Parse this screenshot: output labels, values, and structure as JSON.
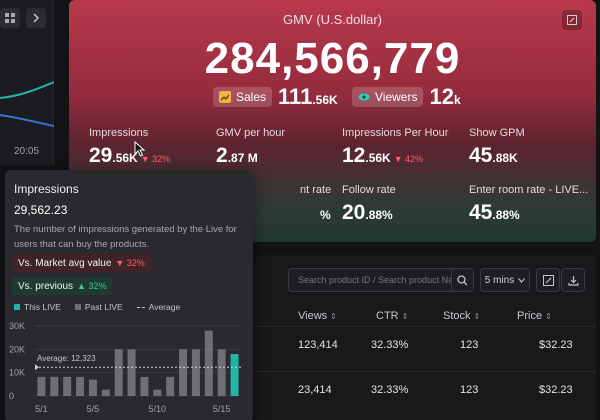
{
  "left_panel": {
    "time_label": "20:05"
  },
  "hero": {
    "title": "GMV (U.S.dollar)",
    "value": "284,566,779",
    "sales": {
      "label": "Sales",
      "value": "111",
      "suffix": ".56K"
    },
    "viewers": {
      "label": "Viewers",
      "value": "12",
      "suffix": "k"
    },
    "metrics": [
      {
        "label": "Impressions",
        "value": "29",
        "suffix": ".56K",
        "delta": "32%"
      },
      {
        "label": "GMV per hour",
        "value": "2",
        "suffix": ".87 M"
      },
      {
        "label": "Impressions Per Hour",
        "value": "12",
        "suffix": ".56K",
        "delta": "42%"
      },
      {
        "label": "Show GPM",
        "value": "45",
        "suffix": ".88K"
      },
      {
        "label": "nt rate",
        "value": "%"
      },
      {
        "label": "Follow rate",
        "value": "20",
        "suffix": ".88%"
      },
      {
        "label": "Enter room rate - LIVE...",
        "value": "45",
        "suffix": ".88%"
      }
    ]
  },
  "table": {
    "search_placeholder": "Search product ID / Search product Name",
    "interval": "5 mins",
    "columns": [
      "Views",
      "CTR",
      "Stock",
      "Price"
    ],
    "rows": [
      {
        "views": "123,414",
        "ctr": "32.33%",
        "stock": "123",
        "price": "$32.23"
      },
      {
        "views": "23,414",
        "ctr": "32.33%",
        "stock": "123",
        "price": "$32.23"
      }
    ]
  },
  "tooltip": {
    "title": "Impressions",
    "value": "29,562.23",
    "description": "The number of impressions generated by the Live for users that can buy the products.",
    "vs_market": {
      "label": "Vs. Market avg value",
      "delta": "32%"
    },
    "vs_previous": {
      "label": "Vs. previous",
      "delta": "32%"
    },
    "legend": {
      "this_live": "This LIVE",
      "past_live": "Past LIVE",
      "average": "Average"
    },
    "colors": {
      "this_live": "#1fb5a8",
      "past_live": "#6e6e74",
      "up": "#2ad1a6",
      "down": "#ff5f73"
    }
  },
  "chart_data": {
    "type": "bar",
    "ylim": [
      0,
      30000
    ],
    "yticks": [
      "30K",
      "20K",
      "10K",
      "0"
    ],
    "ytick_values": [
      30000,
      20000,
      10000,
      0
    ],
    "xtick_labels": [
      {
        "index": 0,
        "label": "5/1"
      },
      {
        "index": 4,
        "label": "5/5"
      },
      {
        "index": 9,
        "label": "5/10"
      },
      {
        "index": 14,
        "label": "5/15"
      }
    ],
    "average": {
      "label": "Average: 12,323",
      "value": 12323
    },
    "values": [
      8200,
      8200,
      8200,
      8200,
      7000,
      2700,
      20000,
      20000,
      8200,
      2700,
      8200,
      20000,
      20000,
      28000,
      20000,
      18000
    ],
    "this_live_index": 15
  }
}
